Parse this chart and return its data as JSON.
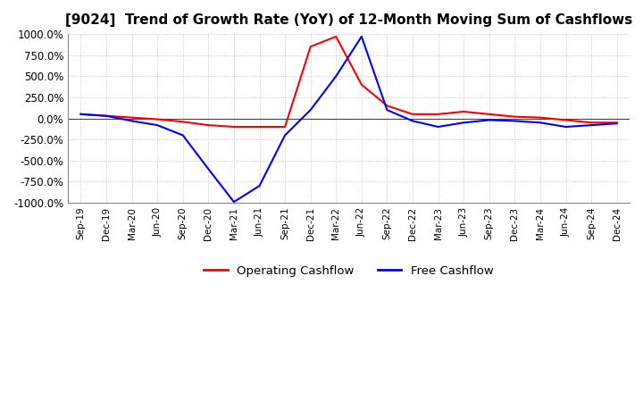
{
  "title": "[9024]  Trend of Growth Rate (YoY) of 12-Month Moving Sum of Cashflows",
  "title_fontsize": 11,
  "ylim": [
    -1000,
    1000
  ],
  "yticks": [
    -1000,
    -750,
    -500,
    -250,
    0,
    250,
    500,
    750,
    1000
  ],
  "ytick_labels": [
    "-1000.0%",
    "-750.0%",
    "-500.0%",
    "-250.0%",
    "0.0%",
    "250.0%",
    "500.0%",
    "750.0%",
    "1000.0%"
  ],
  "background_color": "#ffffff",
  "plot_bg_color": "#ffffff",
  "grid_color": "#bbbbbb",
  "legend_items": [
    "Operating Cashflow",
    "Free Cashflow"
  ],
  "legend_colors": [
    "#ff0000",
    "#0000ff"
  ],
  "x_labels": [
    "Sep-19",
    "Dec-19",
    "Mar-20",
    "Jun-20",
    "Sep-20",
    "Dec-20",
    "Mar-21",
    "Jun-21",
    "Sep-21",
    "Dec-21",
    "Mar-22",
    "Jun-22",
    "Sep-22",
    "Dec-22",
    "Mar-23",
    "Jun-23",
    "Sep-23",
    "Dec-23",
    "Mar-24",
    "Jun-24",
    "Sep-24",
    "Dec-24"
  ],
  "operating_cashflow": [
    50,
    30,
    10,
    -10,
    -40,
    -80,
    -100,
    -100,
    -100,
    850,
    970,
    400,
    150,
    50,
    50,
    80,
    50,
    20,
    10,
    -20,
    -50,
    -50
  ],
  "free_cashflow": [
    50,
    30,
    -30,
    -80,
    -200,
    -600,
    -990,
    -800,
    -200,
    100,
    500,
    970,
    100,
    -30,
    -100,
    -50,
    -20,
    -30,
    -50,
    -100,
    -80,
    -60
  ]
}
